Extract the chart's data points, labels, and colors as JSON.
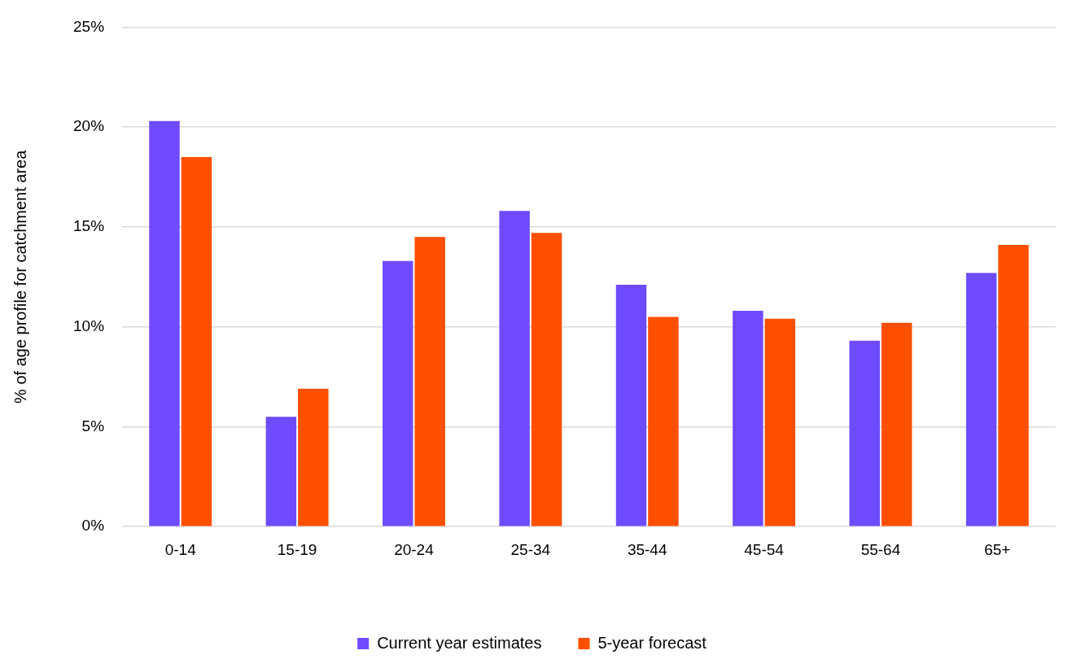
{
  "chart_data": {
    "type": "bar",
    "ylabel": "% of age profile for catchment area",
    "categories": [
      "0-14",
      "15-19",
      "20-24",
      "25-34",
      "35-44",
      "45-54",
      "55-64",
      "65+"
    ],
    "series": [
      {
        "name": "Current year estimates",
        "color": "#6e4bff",
        "values": [
          20.3,
          5.5,
          13.3,
          15.8,
          12.1,
          10.8,
          9.3,
          12.7
        ]
      },
      {
        "name": "5-year forecast",
        "color": "#ff4f00",
        "values": [
          18.5,
          6.9,
          14.5,
          14.7,
          10.5,
          10.4,
          10.2,
          14.1
        ]
      }
    ],
    "ylim": [
      0,
      25
    ],
    "yticks": [
      {
        "value": 0,
        "label": "0%"
      },
      {
        "value": 5,
        "label": "5%"
      },
      {
        "value": 10,
        "label": "10%"
      },
      {
        "value": 15,
        "label": "15%"
      },
      {
        "value": 20,
        "label": "20%"
      },
      {
        "value": 25,
        "label": "25%"
      }
    ],
    "grid": "y",
    "legend": "bottom"
  }
}
